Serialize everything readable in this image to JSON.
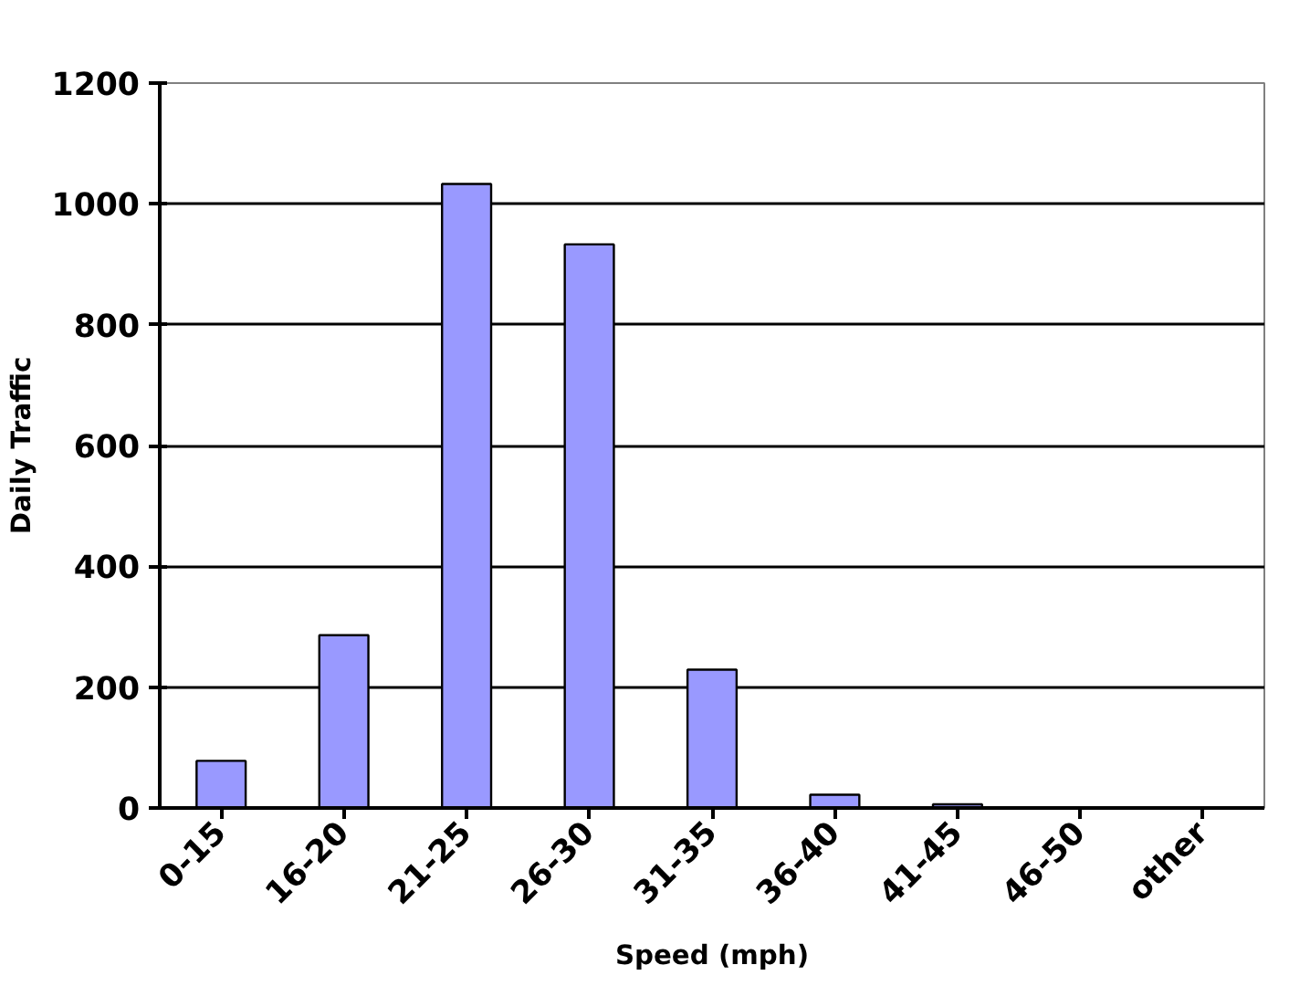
{
  "chart_data": {
    "type": "bar",
    "xlabel": "Speed (mph)",
    "ylabel": "Daily Traffic",
    "categories": [
      "0-15",
      "16-20",
      "21-25",
      "26-30",
      "31-35",
      "36-40",
      "41-45",
      "46-50",
      "other"
    ],
    "values": [
      78,
      286,
      1033,
      933,
      229,
      22,
      6,
      0,
      0
    ],
    "color": "#9999ff",
    "ylim": [
      0,
      1200
    ],
    "yticks": [
      0,
      200,
      400,
      600,
      800,
      1000,
      1200
    ],
    "grid": "y"
  }
}
